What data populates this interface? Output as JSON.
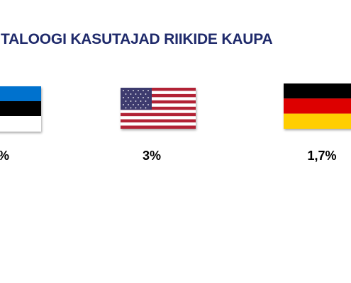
{
  "title": "TALOOGI KASUTAJAD RIIKIDE KAUPA",
  "items": [
    {
      "label": "%"
    },
    {
      "label": "3%"
    },
    {
      "label": "1,7%"
    }
  ]
}
